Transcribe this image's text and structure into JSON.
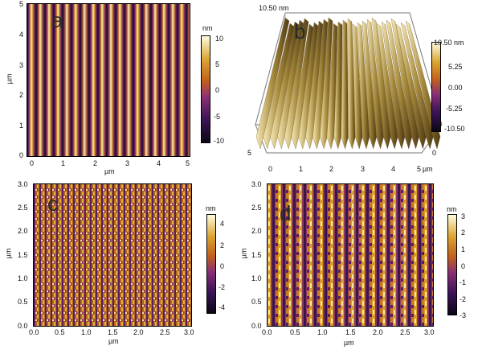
{
  "panels": {
    "a": {
      "letter": "a",
      "xlabel": "µm",
      "ylabel": "µm",
      "xticks": [
        "0",
        "1",
        "2",
        "3",
        "4",
        "5"
      ],
      "yticks": [
        "5",
        "4",
        "3",
        "2",
        "1",
        "0"
      ],
      "colorbar": {
        "unit": "nm",
        "ticks": [
          "10",
          "5",
          "0",
          "-5",
          "-10"
        ]
      }
    },
    "b": {
      "letter": "b",
      "top_label": "10.50 nm",
      "xlabel": "µm",
      "xticks": [
        "0",
        "1",
        "2",
        "3",
        "4",
        "5"
      ],
      "right_ticks": [
        "0",
        "5"
      ],
      "colorbar": {
        "ticks": [
          "10.50 nm",
          "5.25",
          "0.00",
          "-5.25",
          "-10.50"
        ]
      }
    },
    "c": {
      "letter": "c",
      "xlabel": "µm",
      "ylabel": "µm",
      "xticks": [
        "0.0",
        "0.5",
        "1.0",
        "1.5",
        "2.0",
        "2.5",
        "3.0"
      ],
      "yticks": [
        "3.0",
        "2.5",
        "2.0",
        "1.5",
        "1.0",
        "0.5",
        "0.0"
      ],
      "colorbar": {
        "unit": "nm",
        "ticks": [
          "4",
          "2",
          "0",
          "-2",
          "-4"
        ]
      }
    },
    "d": {
      "letter": "d",
      "xlabel": "µm",
      "ylabel": "µm",
      "xticks": [
        "0.0",
        "0.5",
        "1.0",
        "1.5",
        "2.0",
        "2.5",
        "3.0"
      ],
      "yticks": [
        "3.0",
        "2.5",
        "2.0",
        "1.5",
        "1.0",
        "0.5",
        "0.0"
      ],
      "colorbar": {
        "unit": "nm",
        "ticks": [
          "3",
          "2",
          "1",
          "0",
          "-1",
          "-2",
          "-3"
        ]
      }
    }
  },
  "colors": {
    "afm_dark": "#140a24",
    "afm_purple": "#5a1f6e",
    "afm_orange": "#b8601a",
    "afm_gold": "#d9a52b",
    "afm_light": "#fbf3c4"
  }
}
